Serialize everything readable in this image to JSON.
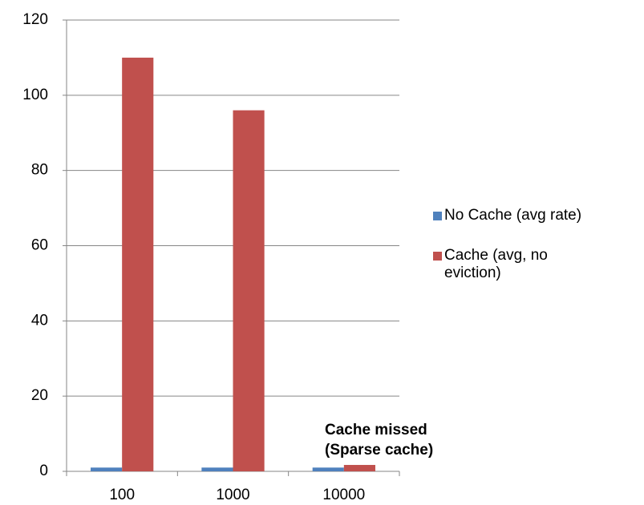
{
  "chart_data": {
    "type": "bar",
    "categories": [
      "100",
      "1000",
      "10000"
    ],
    "series": [
      {
        "name": "No Cache (avg rate)",
        "color": "#4f81bd",
        "values": [
          1,
          1,
          1
        ]
      },
      {
        "name": "Cache (avg, no eviction)",
        "color": "#c0504d",
        "values": [
          110,
          96,
          1.7
        ]
      }
    ],
    "ylim": [
      0,
      120
    ],
    "yticks": [
      0,
      20,
      40,
      60,
      80,
      100,
      120
    ],
    "grid": true,
    "legend": "right",
    "annotation": {
      "lines": [
        "Cache missed",
        "(Sparse cache)"
      ]
    }
  }
}
